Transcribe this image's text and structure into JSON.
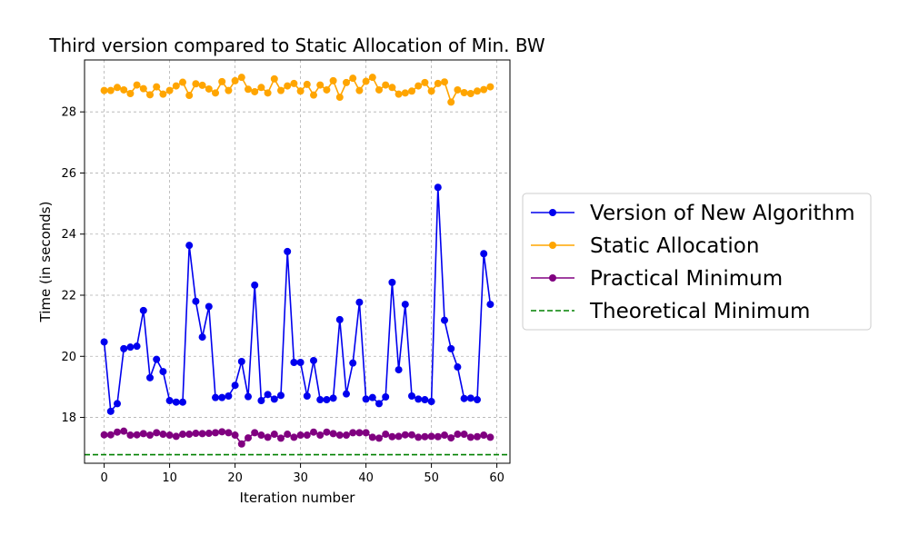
{
  "chart_data": {
    "type": "line",
    "title": "Third version compared to Static Allocation of Min. BW",
    "xlabel": "Iteration number",
    "ylabel": "Time (in seconds)",
    "xlim": [
      -3,
      62
    ],
    "ylim": [
      16.5,
      29.7
    ],
    "xticks": [
      0,
      10,
      20,
      30,
      40,
      50,
      60
    ],
    "yticks": [
      18,
      20,
      22,
      24,
      26,
      28
    ],
    "grid": true,
    "legend_position": "right",
    "x": [
      0,
      1,
      2,
      3,
      4,
      5,
      6,
      7,
      8,
      9,
      10,
      11,
      12,
      13,
      14,
      15,
      16,
      17,
      18,
      19,
      20,
      21,
      22,
      23,
      24,
      25,
      26,
      27,
      28,
      29,
      30,
      31,
      32,
      33,
      34,
      35,
      36,
      37,
      38,
      39,
      40,
      41,
      42,
      43,
      44,
      45,
      46,
      47,
      48,
      49,
      50,
      51,
      52,
      53,
      54,
      55,
      56,
      57,
      58,
      59
    ],
    "series": [
      {
        "name": "Version of New Algorithm",
        "color": "#0000ee",
        "style": "line-marker",
        "values": [
          20.47,
          18.2,
          18.45,
          20.25,
          20.3,
          20.33,
          21.5,
          19.3,
          19.9,
          19.5,
          18.55,
          18.5,
          18.5,
          23.63,
          21.8,
          20.63,
          21.63,
          18.65,
          18.65,
          18.7,
          19.05,
          19.83,
          18.68,
          22.33,
          18.55,
          18.75,
          18.6,
          18.72,
          23.43,
          19.8,
          19.8,
          18.7,
          19.86,
          18.58,
          18.58,
          18.63,
          21.2,
          18.77,
          19.78,
          21.77,
          18.6,
          18.65,
          18.45,
          18.67,
          22.42,
          19.56,
          21.7,
          18.7,
          18.6,
          18.58,
          18.52,
          25.53,
          21.18,
          20.25,
          19.65,
          18.62,
          18.63,
          18.58,
          23.36,
          21.7
        ]
      },
      {
        "name": "Static Allocation",
        "color": "#ffa500",
        "style": "line-marker",
        "values": [
          28.7,
          28.7,
          28.8,
          28.72,
          28.6,
          28.88,
          28.76,
          28.56,
          28.82,
          28.58,
          28.7,
          28.85,
          28.97,
          28.54,
          28.92,
          28.87,
          28.75,
          28.62,
          28.99,
          28.7,
          29.02,
          29.13,
          28.74,
          28.66,
          28.8,
          28.62,
          29.08,
          28.7,
          28.85,
          28.93,
          28.68,
          28.9,
          28.55,
          28.88,
          28.72,
          29.02,
          28.48,
          28.96,
          29.1,
          28.7,
          29.0,
          29.13,
          28.72,
          28.88,
          28.8,
          28.58,
          28.62,
          28.68,
          28.85,
          28.96,
          28.68,
          28.93,
          28.98,
          28.32,
          28.72,
          28.63,
          28.6,
          28.68,
          28.73,
          28.82
        ]
      },
      {
        "name": "Practical Minimum",
        "color": "#800080",
        "style": "line-marker",
        "values": [
          17.43,
          17.43,
          17.52,
          17.55,
          17.42,
          17.43,
          17.47,
          17.42,
          17.5,
          17.45,
          17.42,
          17.38,
          17.45,
          17.45,
          17.48,
          17.47,
          17.48,
          17.5,
          17.53,
          17.5,
          17.42,
          17.13,
          17.33,
          17.5,
          17.42,
          17.35,
          17.45,
          17.32,
          17.45,
          17.35,
          17.42,
          17.42,
          17.52,
          17.42,
          17.52,
          17.47,
          17.42,
          17.42,
          17.5,
          17.5,
          17.5,
          17.35,
          17.32,
          17.45,
          17.37,
          17.38,
          17.43,
          17.43,
          17.35,
          17.37,
          17.38,
          17.37,
          17.42,
          17.33,
          17.45,
          17.45,
          17.35,
          17.37,
          17.42,
          17.35
        ]
      },
      {
        "name": "Theoretical Minimum",
        "color": "#008000",
        "style": "dashed",
        "constant": 16.78
      }
    ]
  }
}
